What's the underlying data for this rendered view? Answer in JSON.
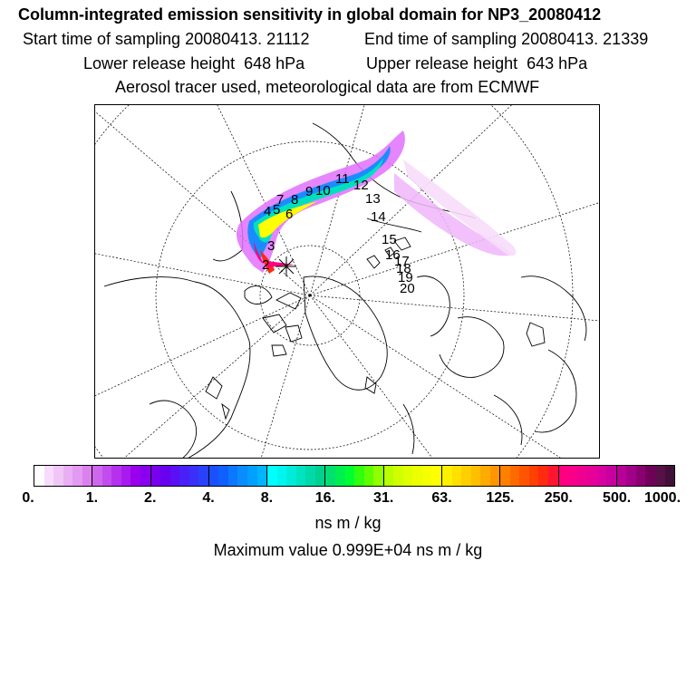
{
  "title": "Column-integrated emission sensitivity in global domain for NP3_20080412",
  "start_time": "Start time of sampling 20080413. 21112",
  "end_time": "End time of sampling 20080413. 21339",
  "lower_release": "Lower release height  648 hPa",
  "upper_release": "Upper release height  643 hPa",
  "tracer_info": "Aerosol tracer used, meteorological data are from ECMWF",
  "colorbar": {
    "tick_labels": [
      "0.",
      "1.",
      "2.",
      "4.",
      "8.",
      "16.",
      "31.",
      "63.",
      "125.",
      "250.",
      "500.",
      "1000."
    ],
    "colors": [
      "#ffffff",
      "#f7ddfb",
      "#f0c6f7",
      "#eaaef5",
      "#e39af2",
      "#dc80ee",
      "#cf66ee",
      "#c24cee",
      "#b531ee",
      "#a81aee",
      "#9a00ee",
      "#8a00ee",
      "#7a00f0",
      "#6a00f0",
      "#5a10f5",
      "#4a20f8",
      "#3a30fa",
      "#2a40fc",
      "#1a50ff",
      "#1060ff",
      "#0b78ff",
      "#0a8cff",
      "#00a0ff",
      "#00b4ff",
      "#00ffff",
      "#00f5f0",
      "#00ecd8",
      "#00e3c0",
      "#00daa8",
      "#00d190",
      "#00e070",
      "#00ef50",
      "#00ff30",
      "#30ff10",
      "#60ff00",
      "#90ff00",
      "#b8ff00",
      "#d0ff00",
      "#e0ff00",
      "#ecff00",
      "#f5ff00",
      "#ffff00",
      "#fff000",
      "#ffe000",
      "#ffcf00",
      "#ffbe00",
      "#ffaa00",
      "#ff9500",
      "#ff7f00",
      "#ff6a00",
      "#ff5500",
      "#ff4000",
      "#ff2a10",
      "#ff1530",
      "#ff0080",
      "#f80088",
      "#ef0090",
      "#e60098",
      "#d800a0",
      "#c800a0",
      "#b80098",
      "#a20088",
      "#8a0070",
      "#700058",
      "#581048",
      "#401038"
    ]
  },
  "unit": "ns m / kg",
  "max_value": "Maximum value  0.999E+04 ns m / kg",
  "day_labels": [
    "2",
    "3",
    "4",
    "5",
    "6",
    "7",
    "8",
    "9",
    "10",
    "11",
    "12",
    "13",
    "14",
    "15",
    "16",
    "17",
    "18",
    "19",
    "20"
  ],
  "map_region": "Arctic polar stereographic, North Pole centered",
  "colors": {
    "plume_core": "#ff0080",
    "plume_outer": "#e070ff",
    "plume_mid": "#1a8cff",
    "coast": "#000000"
  }
}
